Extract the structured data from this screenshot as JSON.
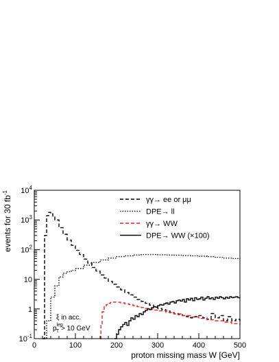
{
  "chart_data": {
    "type": "line",
    "xlabel": "proton missing mass W [GeV]",
    "ylabel": "events for 30 fb",
    "ylabel_sup": "-1",
    "xlim": [
      0,
      500
    ],
    "ylim": [
      0.1,
      10000
    ],
    "yscale": "log",
    "xticks": [
      0,
      100,
      200,
      300,
      400,
      500
    ],
    "xtick_labels": [
      "0",
      "100",
      "200",
      "300",
      "400",
      "500"
    ],
    "yticks": [
      {
        "base": "10",
        "sup": "-1",
        "value": 0.1
      },
      {
        "base": "1",
        "sup": "",
        "value": 1
      },
      {
        "base": "10",
        "sup": "",
        "value": 10
      },
      {
        "base": "10",
        "sup": "2",
        "value": 100
      },
      {
        "base": "10",
        "sup": "3",
        "value": 1000
      },
      {
        "base": "10",
        "sup": "4",
        "value": 10000
      }
    ],
    "legend_position": "top-right",
    "annotation": {
      "line1": "ξ in acc.",
      "line2_p": "p",
      "line2_sub": "T",
      "line2_sup": "lep",
      "line2_rest": " > 10 GeV"
    },
    "series": [
      {
        "name": "γγ→ ee or μμ",
        "color": "#000000",
        "dash": "dashed",
        "x": [
          20,
          25,
          30,
          35,
          40,
          45,
          50,
          60,
          70,
          80,
          90,
          100,
          110,
          120,
          130,
          140,
          150,
          160,
          170,
          180,
          190,
          200,
          210,
          220,
          230,
          240,
          250,
          260,
          270,
          280,
          290,
          300,
          310,
          320,
          330,
          340,
          350,
          360,
          370,
          380,
          390,
          400,
          410,
          420,
          430,
          440,
          450,
          460,
          470,
          480,
          490,
          500
        ],
        "values": [
          0.1,
          300,
          1400,
          1800,
          1700,
          1350,
          1000,
          550,
          330,
          210,
          140,
          95,
          68,
          48,
          35,
          25,
          19,
          14,
          11,
          8.5,
          6.8,
          5.5,
          4.4,
          3.6,
          3,
          2.5,
          2.1,
          1.8,
          1.55,
          1.35,
          1.2,
          1.05,
          0.95,
          0.85,
          0.75,
          0.7,
          0.65,
          0.6,
          0.55,
          0.5,
          0.55,
          0.6,
          0.5,
          0.45,
          0.7,
          0.5,
          0.6,
          0.4,
          0.55,
          0.4,
          0.45,
          0.35
        ]
      },
      {
        "name": "DPE→ ll",
        "color": "#000000",
        "dash": "dotted",
        "x": [
          25,
          30,
          40,
          50,
          60,
          70,
          80,
          90,
          100,
          120,
          140,
          160,
          180,
          200,
          220,
          240,
          260,
          280,
          300,
          320,
          340,
          360,
          380,
          400,
          420,
          440,
          460,
          480,
          500
        ],
        "values": [
          0.1,
          0.4,
          2.5,
          6,
          12,
          16,
          18,
          20,
          23,
          30,
          37,
          45,
          52,
          58,
          62,
          66,
          68,
          68,
          67,
          66,
          65,
          63,
          62,
          60,
          58,
          55,
          52,
          50,
          48
        ]
      },
      {
        "name": "γγ→ WW",
        "color": "#e8201b",
        "dash": "dashed",
        "x": [
          160,
          162,
          165,
          170,
          175,
          180,
          185,
          190,
          200,
          210,
          220,
          230,
          240,
          250,
          260,
          270,
          280,
          290,
          300,
          320,
          340,
          360,
          380,
          400,
          420,
          440,
          460,
          480,
          500
        ],
        "values": [
          0.1,
          0.3,
          0.8,
          1.2,
          1.4,
          1.55,
          1.65,
          1.7,
          1.68,
          1.6,
          1.5,
          1.4,
          1.3,
          1.2,
          1.12,
          1.05,
          0.98,
          0.92,
          0.86,
          0.76,
          0.68,
          0.6,
          0.54,
          0.48,
          0.43,
          0.4,
          0.36,
          0.32,
          0.29
        ]
      },
      {
        "name": "DPE→ WW (×100)",
        "color": "#000000",
        "dash": "solid",
        "x": [
          195,
          200,
          205,
          210,
          215,
          220,
          225,
          230,
          235,
          240,
          245,
          250,
          255,
          260,
          265,
          270,
          275,
          280,
          285,
          290,
          295,
          300,
          305,
          310,
          315,
          320,
          325,
          330,
          335,
          340,
          345,
          350,
          355,
          360,
          365,
          370,
          375,
          380,
          385,
          390,
          395,
          400,
          405,
          410,
          415,
          420,
          425,
          430,
          435,
          440,
          445,
          450,
          455,
          460,
          465,
          470,
          475,
          480,
          485,
          490,
          495,
          500
        ],
        "values": [
          0.1,
          0.14,
          0.2,
          0.25,
          0.3,
          0.35,
          0.28,
          0.4,
          0.5,
          0.45,
          0.6,
          0.55,
          0.7,
          0.65,
          0.8,
          0.9,
          1.0,
          0.95,
          1.1,
          1.2,
          1.15,
          1.3,
          1.4,
          1.35,
          1.5,
          1.6,
          1.45,
          1.7,
          1.8,
          1.6,
          1.9,
          2.0,
          1.85,
          2.1,
          1.7,
          2.2,
          2.0,
          2.3,
          1.9,
          2.4,
          2.1,
          2.2,
          2.5,
          2.0,
          2.3,
          2.6,
          2.2,
          2.4,
          2.1,
          2.5,
          2.3,
          2.6,
          2.4,
          2.2,
          2.5,
          2.3,
          2.6,
          2.4,
          2.5,
          2.6,
          2.4,
          2.5
        ]
      }
    ]
  }
}
